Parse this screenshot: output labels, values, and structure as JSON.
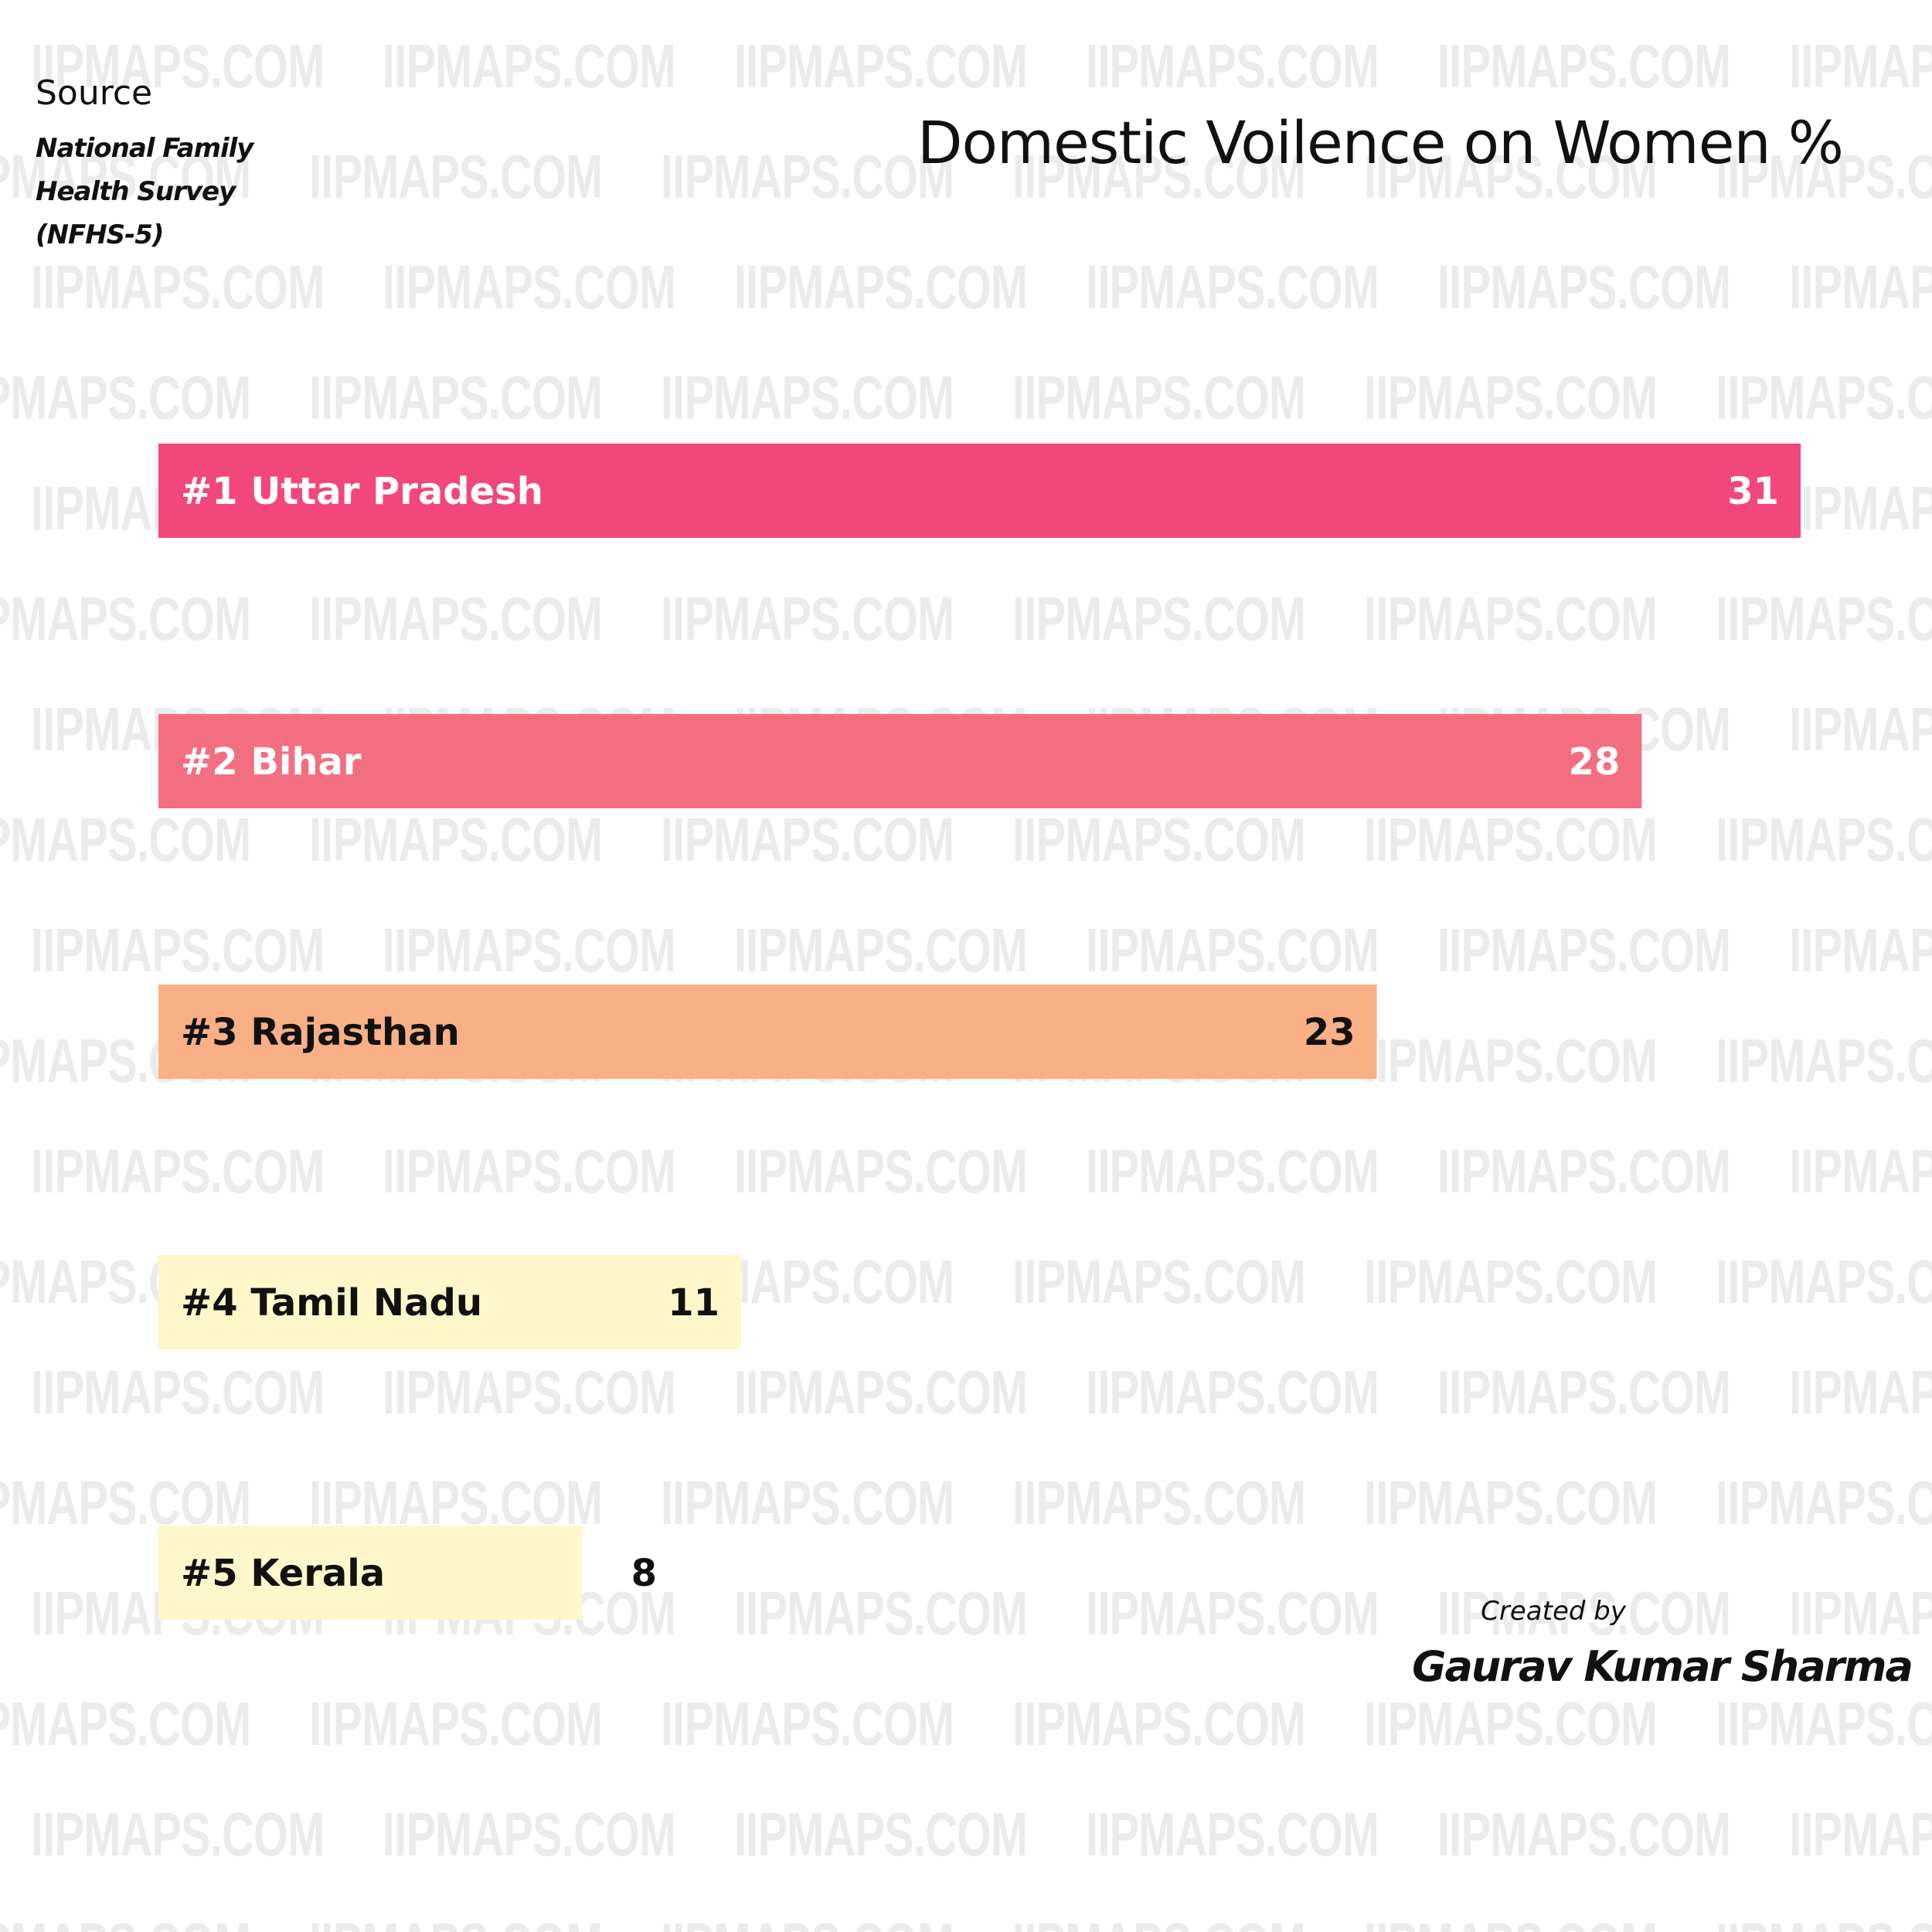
{
  "watermark": {
    "text": "IIPMAPS.COM"
  },
  "source": {
    "heading": "Source",
    "name": "National Family Health Survey (NFHS-5)"
  },
  "credit": {
    "prefix": "Created by",
    "author": "Gaurav Kumar Sharma"
  },
  "chart_data": {
    "type": "bar",
    "orientation": "horizontal",
    "title": "Domestic Voilence on Women %",
    "categories": [
      "#1 Uttar Pradesh",
      "#2 Bihar",
      "#3 Rajasthan",
      "#4 Tamil Nadu",
      "#5 Kerala"
    ],
    "values": [
      31,
      28,
      23,
      11,
      8
    ],
    "colors": [
      "#f2477a",
      "#f46e81",
      "#f9b086",
      "#fdf7c9",
      "#fdf7c9"
    ],
    "label_colors": [
      "#ffffff",
      "#ffffff",
      "#111111",
      "#111111",
      "#111111"
    ],
    "value_colors": [
      "#ffffff",
      "#ffffff",
      "#111111",
      "#111111",
      "#111111"
    ],
    "xlim": [
      0,
      31
    ],
    "grid": false,
    "legend": "none"
  }
}
